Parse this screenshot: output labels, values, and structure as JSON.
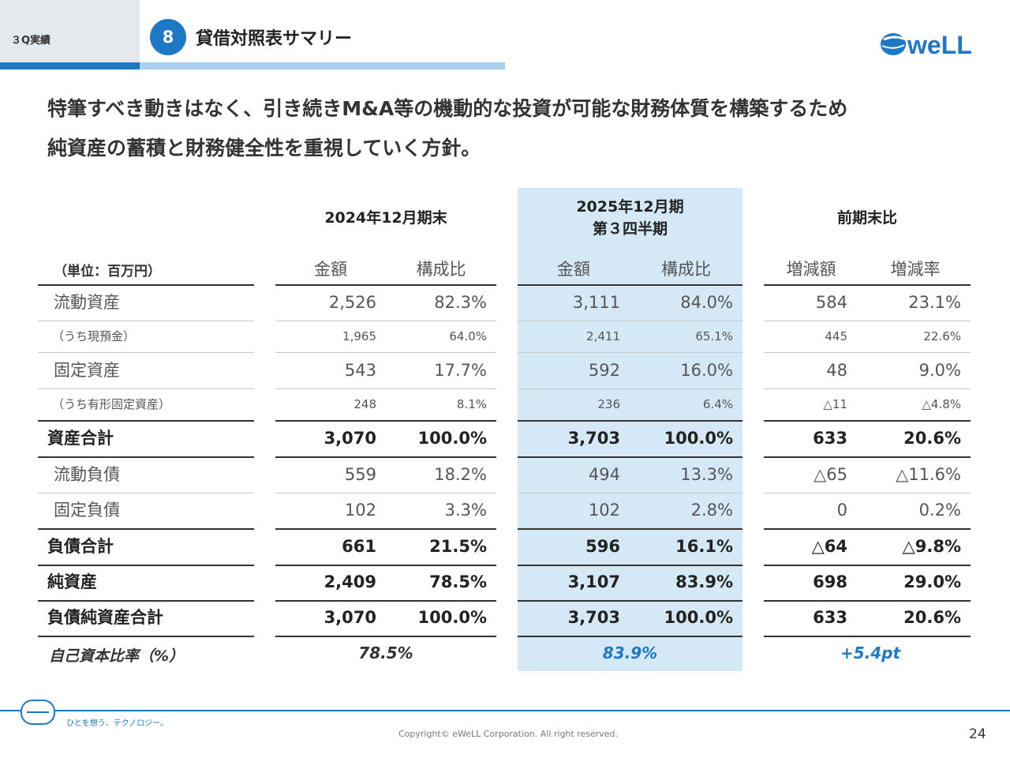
{
  "header": {
    "section_label": "３Q実績",
    "badge_number": "8",
    "title": "貸借対照表サマリー",
    "logo_text": "weLL"
  },
  "headline": {
    "line1": "特筆すべき動きはなく、引き続きM&A等の機動的な投資が可能な財務体質を構築するため",
    "line2": "純資産の蓄積と財務健全性を重視していく方針。"
  },
  "table": {
    "unit_label": "（単位：百万円）",
    "group_headers": {
      "prior": "2024年12月期末",
      "current_line1": "2025年12月期",
      "current_line2": "第３四半期",
      "change": "前期末比"
    },
    "sub_headers": {
      "amount": "金額",
      "ratio": "構成比",
      "change_amount": "増減額",
      "change_rate": "増減率"
    },
    "rows": [
      {
        "label": "流動資産",
        "a": "2,526",
        "b": "82.3%",
        "c": "3,111",
        "d": "84.0%",
        "e": "584",
        "f": "23.1%"
      },
      {
        "label": "（うち現預金）",
        "a": "1,965",
        "b": "64.0%",
        "c": "2,411",
        "d": "65.1%",
        "e": "445",
        "f": "22.6%"
      },
      {
        "label": "固定資産",
        "a": "543",
        "b": "17.7%",
        "c": "592",
        "d": "16.0%",
        "e": "48",
        "f": "9.0%"
      },
      {
        "label": "（うち有形固定資産）",
        "a": "248",
        "b": "8.1%",
        "c": "236",
        "d": "6.4%",
        "e": "△11",
        "f": "△4.8%"
      },
      {
        "label": "資産合計",
        "a": "3,070",
        "b": "100.0%",
        "c": "3,703",
        "d": "100.0%",
        "e": "633",
        "f": "20.6%"
      },
      {
        "label": "流動負債",
        "a": "559",
        "b": "18.2%",
        "c": "494",
        "d": "13.3%",
        "e": "△65",
        "f": "△11.6%"
      },
      {
        "label": "固定負債",
        "a": "102",
        "b": "3.3%",
        "c": "102",
        "d": "2.8%",
        "e": "0",
        "f": "0.2%"
      },
      {
        "label": "負債合計",
        "a": "661",
        "b": "21.5%",
        "c": "596",
        "d": "16.1%",
        "e": "△64",
        "f": "△9.8%"
      },
      {
        "label": "純資産",
        "a": "2,409",
        "b": "78.5%",
        "c": "3,107",
        "d": "83.9%",
        "e": "698",
        "f": "29.0%"
      },
      {
        "label": "負債純資産合計",
        "a": "3,070",
        "b": "100.0%",
        "c": "3,703",
        "d": "100.0%",
        "e": "633",
        "f": "20.6%"
      }
    ],
    "equity_ratio": {
      "label": "自己資本比率（%）",
      "prior": "78.5%",
      "current": "83.9%",
      "change": "+5.4pt"
    }
  },
  "footer": {
    "tagline": "ひとを想う、テクノロジー。",
    "copyright": "Copyright© eWeLL Corporation. All right reserved.",
    "page_number": "24"
  },
  "colors": {
    "brand_blue": "#1f78c3",
    "highlight": "#d5e8f6"
  }
}
